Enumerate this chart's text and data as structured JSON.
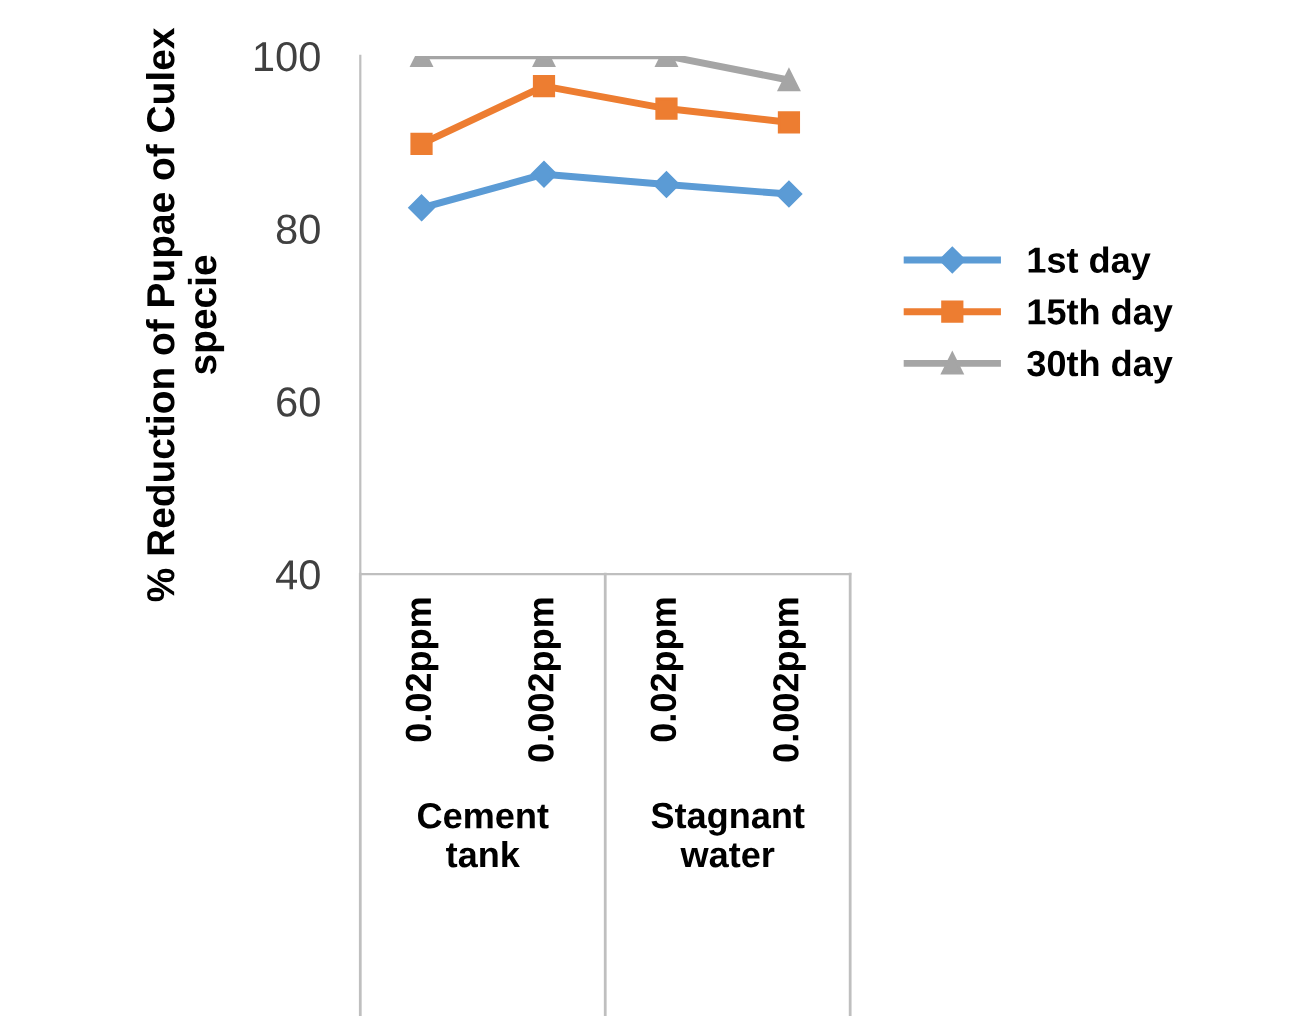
{
  "chart_data": {
    "type": "line",
    "ylabel": "% Reduction of Pupae of Culex\nspecie",
    "categories": [
      "0.02ppm",
      "0.002ppm",
      "0.02ppm",
      "0.002ppm"
    ],
    "annotations": [
      "Cement\ntank",
      "Stagnant\nwater"
    ],
    "series": [
      {
        "name": "1st day",
        "color": "#5b9bd5",
        "marker": "diamond",
        "values": [
          82.4,
          86.3,
          85.1,
          84.0
        ]
      },
      {
        "name": "15th day",
        "color": "#ed7d31",
        "marker": "square",
        "values": [
          89.8,
          96.5,
          93.9,
          92.3
        ]
      },
      {
        "name": "30th day",
        "color": "#a5a5a5",
        "marker": "triangle",
        "values": [
          100,
          100,
          100,
          97.2
        ]
      }
    ],
    "ylim": [
      40,
      100
    ],
    "yticks": [
      40,
      60,
      80,
      100
    ],
    "grid": false,
    "legend": "right",
    "line_style": "solid"
  }
}
